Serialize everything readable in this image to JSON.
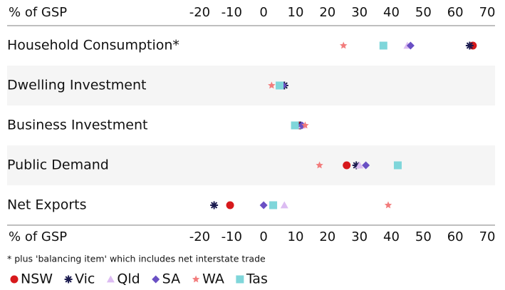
{
  "chart_data": {
    "type": "dot",
    "xlabel": "% of GSP",
    "note": "* plus 'balancing item' which includes net interstate trade",
    "categories": [
      "Household Consumption*",
      "Dwelling Investment",
      "Business Investment",
      "Public Demand",
      "Net Exports"
    ],
    "xlim": [
      -25,
      72
    ],
    "xticks": [
      -20,
      -10,
      0,
      10,
      20,
      30,
      40,
      50,
      60,
      70
    ],
    "series": [
      {
        "name": "NSW",
        "color": "#d7191c",
        "marker": "circle",
        "values": [
          65.5,
          5.5,
          11,
          26,
          -10.5
        ]
      },
      {
        "name": "Vic",
        "color": "#1b1b4f",
        "marker": "asterisk",
        "values": [
          64.5,
          6.5,
          11.5,
          29,
          -15.5
        ]
      },
      {
        "name": "Qld",
        "color": "#dcbcf2",
        "marker": "triangle",
        "values": [
          45,
          5,
          12,
          30,
          6.5
        ]
      },
      {
        "name": "SA",
        "color": "#6a50c4",
        "marker": "diamond",
        "values": [
          46,
          6,
          12,
          32,
          0
        ]
      },
      {
        "name": "WA",
        "color": "#f27c7c",
        "marker": "star",
        "values": [
          25,
          2.5,
          13,
          17.5,
          39
        ]
      },
      {
        "name": "Tas",
        "color": "#7fd6da",
        "marker": "square",
        "values": [
          37.5,
          5,
          9.8,
          42,
          3
        ]
      }
    ]
  }
}
